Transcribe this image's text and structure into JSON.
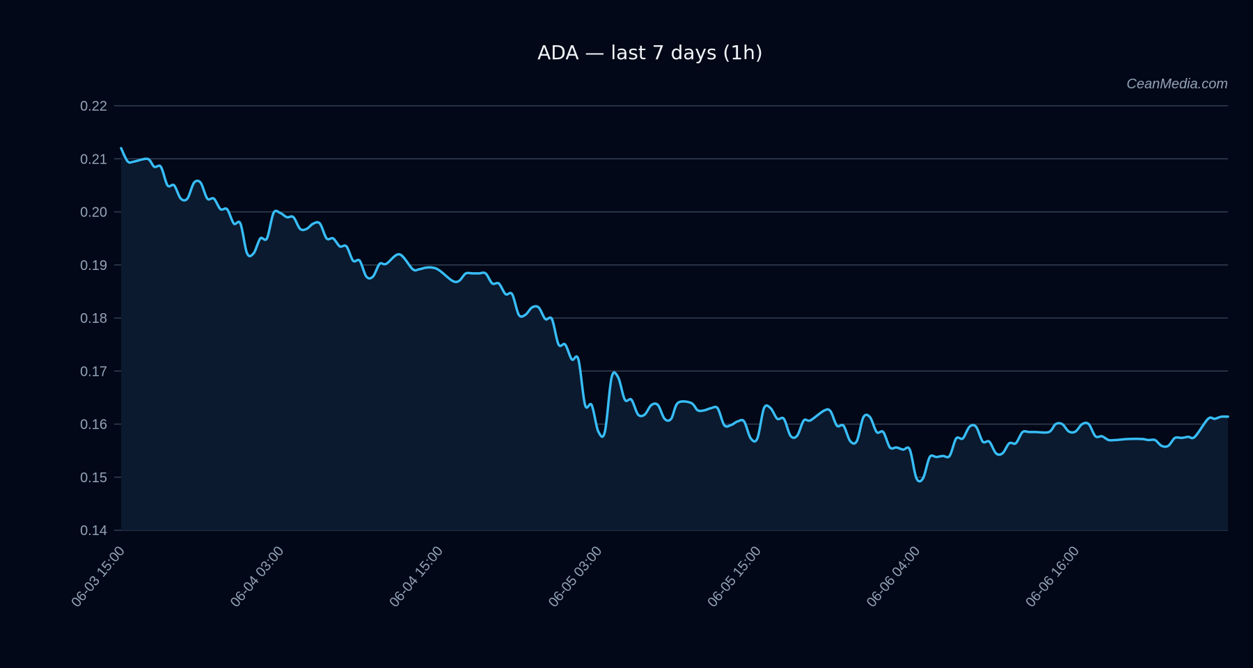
{
  "watermark": "CeanMedia.com",
  "colors": {
    "background": "#020817",
    "line": "#38bdf8",
    "area": "#0b1a2e",
    "grid": "#334155",
    "text": "#94a3b8",
    "title": "#f1f5f9"
  },
  "chart_data": {
    "type": "area",
    "title": "ADA — last 7 days (1h)",
    "xlabel": "",
    "ylabel": "",
    "ylim": [
      0.14,
      0.22
    ],
    "grid": true,
    "yticks": [
      "0.14",
      "0.15",
      "0.16",
      "0.17",
      "0.18",
      "0.19",
      "0.20",
      "0.21",
      "0.22"
    ],
    "xticks": [
      {
        "index": 0,
        "label": "06-03 15:00"
      },
      {
        "index": 12,
        "label": "06-04 03:00"
      },
      {
        "index": 24,
        "label": "06-04 15:00"
      },
      {
        "index": 36,
        "label": "06-05 03:00"
      },
      {
        "index": 48,
        "label": "06-05 15:00"
      },
      {
        "index": 60,
        "label": "06-06 04:00"
      },
      {
        "index": 72,
        "label": "06-06 16:00"
      }
    ],
    "x_last_index": 83.5,
    "series": [
      {
        "x": [
          0,
          0.5,
          1,
          2,
          2.5,
          3,
          3.5,
          4,
          4.5,
          5,
          5.5,
          6,
          6.5,
          7,
          7.5,
          8,
          8.5,
          9,
          9.5,
          10,
          10.5,
          11,
          11.5,
          12,
          12.5,
          13,
          13.5,
          14,
          14.5,
          15,
          15.5,
          16,
          16.5,
          17,
          17.5,
          18,
          18.5,
          19,
          19.5,
          20,
          21,
          22,
          22.5,
          23,
          23.5,
          24,
          25,
          25.5,
          26,
          26.5,
          27,
          27.5,
          28,
          28.5,
          29,
          29.5,
          30,
          30.5,
          31,
          31.5,
          32,
          32.5,
          33,
          33.5,
          34,
          34.5,
          35,
          35.5,
          36,
          36.5,
          37,
          37.5,
          38,
          38.5,
          39,
          39.5,
          40,
          40.5,
          41,
          41.5,
          42,
          43,
          43.5,
          44,
          44.5,
          45,
          45.5,
          46,
          46.5,
          47,
          47.5,
          48,
          48.5,
          49,
          49.5,
          50,
          50.5,
          51,
          51.5,
          52,
          53,
          53.5,
          54,
          54.5,
          55,
          55.5,
          56,
          56.5,
          57,
          57.5,
          58,
          58.5,
          59,
          59.5,
          60,
          60.5,
          61,
          61.5,
          62,
          62.5,
          63,
          63.5,
          64,
          64.5,
          65,
          65.5,
          66,
          66.5,
          67,
          67.5,
          68,
          68.5,
          69,
          70,
          70.5,
          71,
          71.5,
          72,
          72.5,
          73,
          73.5,
          74,
          74.5,
          75,
          76,
          77,
          77.5,
          78,
          78.5,
          79,
          79.5,
          80,
          80.5,
          81,
          82,
          82.5,
          83,
          83.5
        ],
        "values": [
          0.212,
          0.2095,
          0.2095,
          0.21,
          0.2085,
          0.2085,
          0.205,
          0.205,
          0.2025,
          0.2025,
          0.2055,
          0.2055,
          0.2025,
          0.2025,
          0.2005,
          0.2005,
          0.1978,
          0.1978,
          0.1922,
          0.1922,
          0.195,
          0.195,
          0.1998,
          0.1998,
          0.199,
          0.199,
          0.1968,
          0.1968,
          0.1978,
          0.1978,
          0.195,
          0.195,
          0.1935,
          0.1935,
          0.1908,
          0.1908,
          0.1878,
          0.1878,
          0.1902,
          0.1902,
          0.192,
          0.1892,
          0.1892,
          0.1895,
          0.1895,
          0.189,
          0.187,
          0.187,
          0.1884,
          0.1884,
          0.1884,
          0.1884,
          0.1865,
          0.1865,
          0.1845,
          0.1845,
          0.1806,
          0.1806,
          0.182,
          0.182,
          0.1798,
          0.1798,
          0.175,
          0.175,
          0.1722,
          0.1722,
          0.1636,
          0.1636,
          0.1586,
          0.1586,
          0.1688,
          0.1688,
          0.1646,
          0.1646,
          0.1618,
          0.1618,
          0.1636,
          0.1636,
          0.161,
          0.161,
          0.164,
          0.164,
          0.1626,
          0.1626,
          0.163,
          0.163,
          0.1598,
          0.1598,
          0.1605,
          0.1605,
          0.1573,
          0.1573,
          0.163,
          0.163,
          0.161,
          0.161,
          0.1578,
          0.1578,
          0.1607,
          0.1607,
          0.1625,
          0.1625,
          0.1597,
          0.1597,
          0.1568,
          0.1568,
          0.1613,
          0.1613,
          0.1585,
          0.1585,
          0.1556,
          0.1556,
          0.1552,
          0.1552,
          0.1498,
          0.1498,
          0.1538,
          0.1538,
          0.154,
          0.154,
          0.1573,
          0.1573,
          0.1595,
          0.1595,
          0.1567,
          0.1567,
          0.1545,
          0.1545,
          0.1564,
          0.1564,
          0.1585,
          0.1585,
          0.1585,
          0.1585,
          0.16,
          0.16,
          0.1586,
          0.1586,
          0.16,
          0.16,
          0.1577,
          0.1577,
          0.157,
          0.157,
          0.1572,
          0.1572,
          0.157,
          0.157,
          0.1559,
          0.1559,
          0.1574,
          0.1574,
          0.1576,
          0.1576,
          0.161,
          0.161,
          0.1614,
          0.1614
        ]
      }
    ]
  }
}
